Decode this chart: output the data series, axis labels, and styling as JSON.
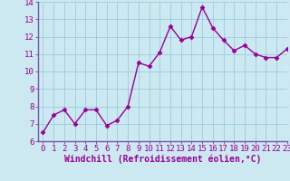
{
  "x": [
    0,
    1,
    2,
    3,
    4,
    5,
    6,
    7,
    8,
    9,
    10,
    11,
    12,
    13,
    14,
    15,
    16,
    17,
    18,
    19,
    20,
    21,
    22,
    23
  ],
  "y": [
    6.5,
    7.5,
    7.8,
    7.0,
    7.8,
    7.8,
    6.9,
    7.2,
    8.0,
    10.5,
    10.3,
    11.1,
    12.6,
    11.8,
    12.0,
    13.7,
    12.5,
    11.8,
    11.2,
    11.5,
    11.0,
    10.8,
    10.8,
    11.3
  ],
  "line_color": "#990099",
  "marker": "D",
  "marker_size": 2.5,
  "bg_color": "#cce8f0",
  "grid_color": "#99ccdd",
  "spine_color": "#7755aa",
  "xlabel": "Windchill (Refroidissement éolien,°C)",
  "ylim": [
    6,
    14
  ],
  "xlim": [
    -0.5,
    23
  ],
  "yticks": [
    6,
    7,
    8,
    9,
    10,
    11,
    12,
    13,
    14
  ],
  "xticks": [
    0,
    1,
    2,
    3,
    4,
    5,
    6,
    7,
    8,
    9,
    10,
    11,
    12,
    13,
    14,
    15,
    16,
    17,
    18,
    19,
    20,
    21,
    22,
    23
  ],
  "xlabel_fontsize": 7,
  "tick_fontsize": 6.5,
  "line_width": 1.0
}
